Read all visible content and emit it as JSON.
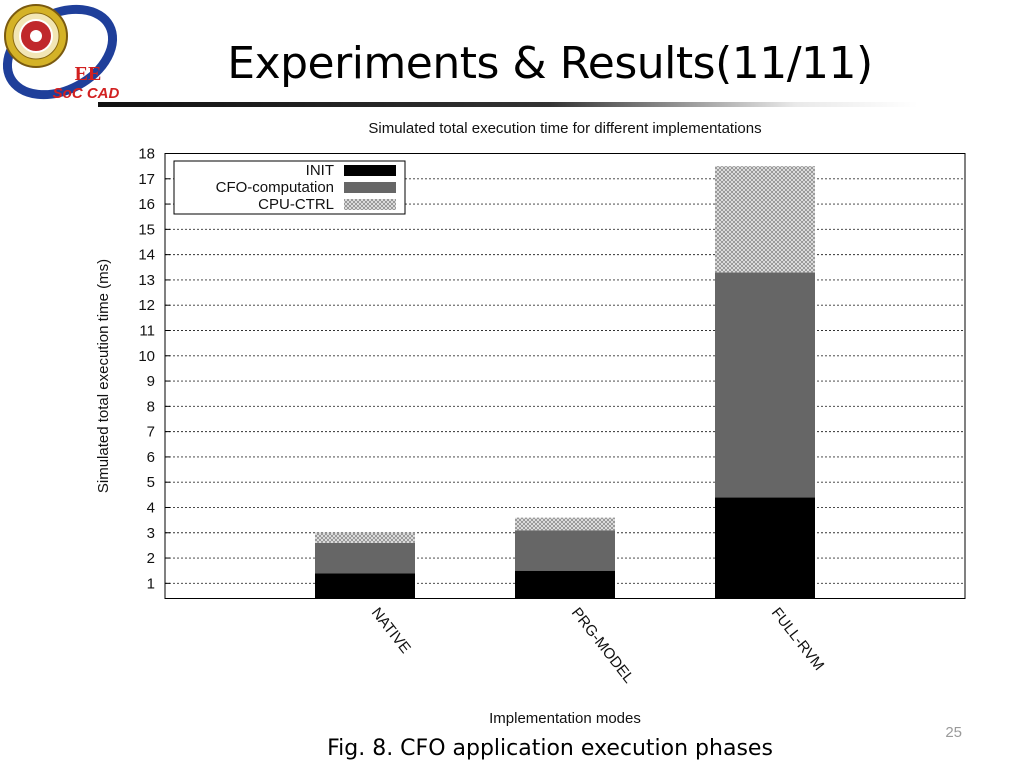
{
  "slide": {
    "title": "Experiments & Results(11/11)",
    "caption": "Fig. 8. CFO application execution phases",
    "page_number": "25",
    "logo_text": {
      "line1": "EE",
      "line2": "SoC CAD"
    }
  },
  "chart_data": {
    "type": "bar",
    "stacked": true,
    "title": "Simulated total execution time for different implementations",
    "xlabel": "Implementation modes",
    "ylabel": "Simulated total execution time (ms)",
    "ylim": [
      0.4,
      18
    ],
    "yticks": [
      1,
      2,
      3,
      4,
      5,
      6,
      7,
      8,
      9,
      10,
      11,
      12,
      13,
      14,
      15,
      16,
      17,
      18
    ],
    "grid": true,
    "legend_position": "top-left",
    "categories": [
      "NATIVE",
      "PRG-MODEL",
      "FULL-RVM"
    ],
    "series": [
      {
        "name": "INIT",
        "values": [
          1.4,
          1.5,
          4.4
        ],
        "color": "#000000",
        "pattern": "solid"
      },
      {
        "name": "CFO-computation",
        "values": [
          1.2,
          1.6,
          8.9
        ],
        "color": "#666666",
        "pattern": "solid"
      },
      {
        "name": "CPU-CTRL",
        "values": [
          0.4,
          0.5,
          4.2
        ],
        "color": "#bdbdbd",
        "pattern": "crosshatch"
      }
    ]
  }
}
